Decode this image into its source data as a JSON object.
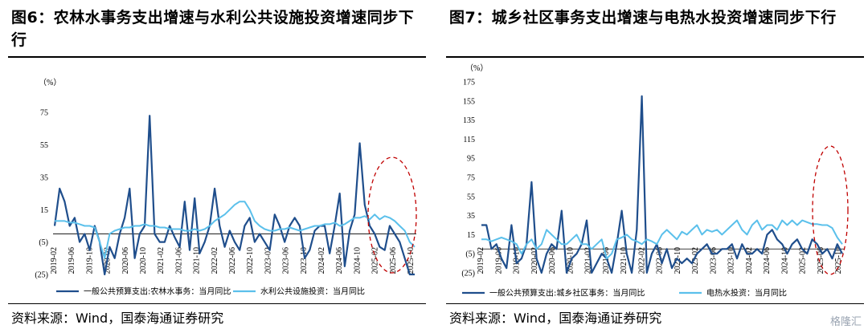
{
  "source_text": "资料来源：Wind，国泰海通证券研究",
  "watermark": "格隆汇",
  "chart_data": [
    {
      "type": "line",
      "title": "图6：农林水事务支出增速与水利公共设施投资增速同步下行",
      "unit_label": "（%）",
      "ylim": [
        -25,
        85
      ],
      "yticks": [
        -25,
        -5,
        15,
        35,
        55,
        75
      ],
      "ytick_labels": [
        "(25)",
        "(5)",
        "15",
        "35",
        "55",
        "75"
      ],
      "x_tick_labels": [
        "2019-02",
        "2019-06",
        "2019-10",
        "2020-02",
        "2020-06",
        "2020-10",
        "2021-02",
        "2021-06",
        "2021-10",
        "2022-02",
        "2022-06",
        "2022-10",
        "2023-02",
        "2023-06",
        "2023-10",
        "2024-02",
        "2024-06",
        "2024-10",
        "2025-02",
        "2025-06",
        "2025-10"
      ],
      "annotation": "red dashed ellipse around 2025",
      "legend": "bottom",
      "series": [
        {
          "name": "一般公共预算支出:农林水事务：当月同比",
          "color": "#1f4e8c",
          "values": [
            5,
            28,
            20,
            5,
            10,
            -5,
            0,
            -10,
            5,
            -5,
            -30,
            -8,
            -15,
            0,
            10,
            28,
            -15,
            0,
            5,
            73,
            0,
            -5,
            -5,
            5,
            -2,
            -8,
            20,
            -10,
            22,
            -12,
            -5,
            5,
            28,
            5,
            -8,
            2,
            -5,
            -10,
            5,
            10,
            -5,
            0,
            -5,
            -10,
            12,
            5,
            -5,
            5,
            10,
            5,
            -15,
            -10,
            2,
            5,
            5,
            -12,
            5,
            25,
            -20,
            2,
            12,
            56,
            18,
            5,
            0,
            -8,
            -10,
            5,
            0,
            -5,
            -15,
            -30,
            -25
          ]
        },
        {
          "name": "水利公共设施投资：当月同比",
          "color": "#5bc0eb",
          "values": [
            8,
            8,
            8,
            7,
            7,
            6,
            5,
            5,
            4,
            -5,
            -15,
            0,
            2,
            3,
            4,
            4,
            5,
            5,
            6,
            5,
            5,
            4,
            4,
            3,
            3,
            3,
            2,
            2,
            3,
            2,
            3,
            5,
            8,
            10,
            12,
            15,
            18,
            20,
            20,
            15,
            8,
            5,
            3,
            2,
            2,
            3,
            3,
            4,
            3,
            2,
            3,
            4,
            5,
            5,
            6,
            6,
            7,
            5,
            6,
            8,
            10,
            10,
            11,
            9,
            12,
            9,
            11,
            10,
            8,
            5,
            2,
            -5,
            -8
          ]
        }
      ]
    },
    {
      "type": "line",
      "title": "图7：城乡社区事务支出增速与电热水投资增速同步下行",
      "unit_label": "（%）",
      "ylim": [
        -25,
        175
      ],
      "yticks": [
        -25,
        -5,
        15,
        35,
        55,
        75,
        95,
        115,
        135,
        155,
        175
      ],
      "ytick_labels": [
        "(25)",
        "(5)",
        "15",
        "35",
        "55",
        "75",
        "95",
        "115",
        "135",
        "155",
        "175"
      ],
      "x_tick_labels": [
        "2019-02",
        "2019-06",
        "2019-10",
        "2020-02",
        "2020-06",
        "2020-10",
        "2021-02",
        "2021-06",
        "2021-10",
        "2022-02",
        "2022-06",
        "2022-10",
        "2023-02",
        "2023-06",
        "2023-10",
        "2024-02",
        "2024-06",
        "2024-10",
        "2025-02",
        "2025-06",
        "2025-10"
      ],
      "annotation": "red dashed ellipse around 2025",
      "legend": "bottom",
      "series": [
        {
          "name": "一般公共预算支出:城乡社区事务：当月同比",
          "color": "#1f4e8c",
          "values": [
            25,
            25,
            0,
            5,
            -10,
            -20,
            25,
            -15,
            -10,
            5,
            70,
            -10,
            -25,
            -5,
            5,
            0,
            40,
            -25,
            -10,
            -5,
            5,
            30,
            -25,
            -15,
            -5,
            -10,
            -25,
            5,
            40,
            -5,
            -25,
            20,
            160,
            -25,
            -5,
            5,
            -15,
            0,
            -20,
            -10,
            -15,
            -10,
            -15,
            -5,
            0,
            5,
            -5,
            -5,
            0,
            0,
            5,
            -10,
            5,
            -5,
            -5,
            0,
            -5,
            15,
            20,
            10,
            5,
            -5,
            5,
            10,
            0,
            -5,
            10,
            5,
            -5,
            0,
            -10,
            5,
            -5
          ]
        },
        {
          "name": "电热水投资：当月同比",
          "color": "#5bc0eb",
          "values": [
            10,
            10,
            8,
            10,
            12,
            10,
            8,
            5,
            -5,
            5,
            10,
            0,
            5,
            20,
            15,
            10,
            5,
            5,
            10,
            15,
            5,
            5,
            0,
            5,
            10,
            -10,
            -5,
            10,
            12,
            15,
            10,
            8,
            5,
            10,
            8,
            5,
            15,
            20,
            15,
            10,
            18,
            15,
            20,
            25,
            15,
            20,
            18,
            20,
            15,
            20,
            25,
            30,
            20,
            15,
            25,
            30,
            20,
            25,
            25,
            20,
            30,
            25,
            30,
            25,
            30,
            28,
            26,
            26,
            25,
            25,
            22,
            12,
            5
          ]
        }
      ]
    }
  ]
}
